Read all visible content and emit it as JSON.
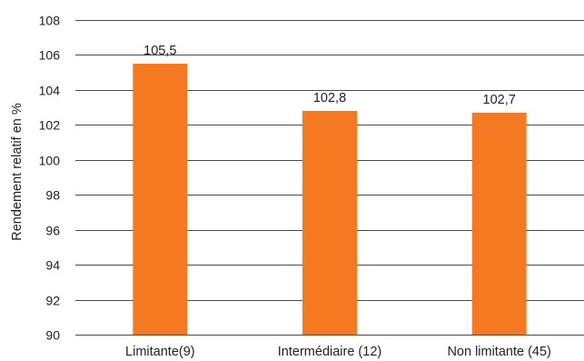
{
  "chart_data": {
    "type": "bar",
    "title": "",
    "xlabel": "",
    "ylabel": "Rendement relatif en %",
    "categories": [
      "Limitante(9)",
      "Intermédiaire (12)",
      "Non limitante (45)"
    ],
    "values": [
      105.5,
      102.8,
      102.7
    ],
    "value_labels": [
      "105,5",
      "102,8",
      "102,7"
    ],
    "ylim": [
      90,
      108
    ],
    "yticks": [
      "90",
      "92",
      "94",
      "96",
      "98",
      "100",
      "102",
      "104",
      "106",
      "108"
    ],
    "grid": true,
    "legend": "none",
    "bar_color": "#f47920"
  }
}
